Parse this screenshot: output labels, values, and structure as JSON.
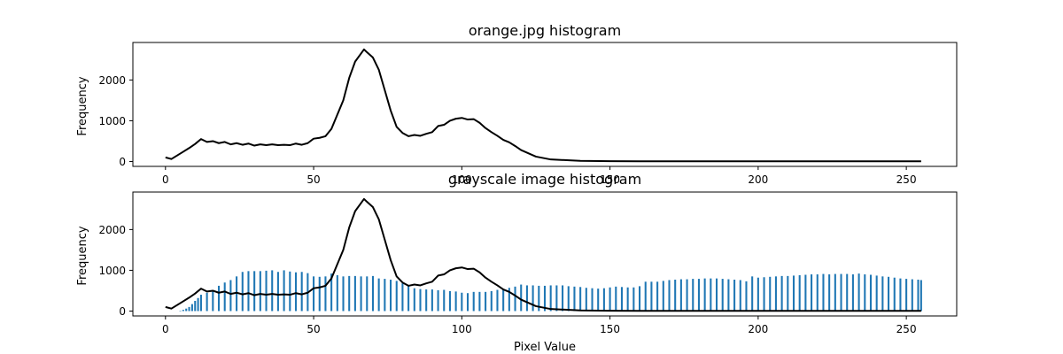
{
  "chart_data": [
    {
      "type": "line",
      "title": "orange.jpg histogram",
      "xlabel": "",
      "ylabel": "Frequency",
      "xlim": [
        -11,
        267
      ],
      "ylim": [
        -120,
        2920
      ],
      "xticks": [
        0,
        50,
        100,
        150,
        200,
        250
      ],
      "yticks": [
        0,
        1000,
        2000
      ],
      "grid": false,
      "series": [
        {
          "color": "#000000",
          "x": [
            0,
            2,
            4,
            6,
            8,
            10,
            12,
            14,
            16,
            18,
            20,
            22,
            24,
            26,
            28,
            30,
            32,
            34,
            36,
            38,
            40,
            42,
            44,
            46,
            48,
            50,
            52,
            54,
            56,
            58,
            60,
            62,
            64,
            66,
            67,
            68,
            70,
            72,
            74,
            76,
            78,
            80,
            82,
            84,
            86,
            88,
            90,
            92,
            94,
            96,
            98,
            100,
            102,
            104,
            106,
            108,
            110,
            112,
            114,
            116,
            118,
            120,
            125,
            130,
            140,
            150,
            160,
            180,
            200,
            220,
            240,
            255
          ],
          "values": [
            100,
            60,
            150,
            240,
            330,
            430,
            550,
            480,
            500,
            450,
            480,
            420,
            450,
            410,
            440,
            390,
            420,
            400,
            420,
            400,
            410,
            400,
            440,
            410,
            450,
            560,
            580,
            620,
            800,
            1150,
            1500,
            2050,
            2450,
            2650,
            2750,
            2680,
            2550,
            2250,
            1750,
            1250,
            850,
            700,
            620,
            650,
            630,
            680,
            720,
            870,
            900,
            1000,
            1050,
            1070,
            1030,
            1040,
            950,
            820,
            720,
            630,
            530,
            470,
            380,
            280,
            120,
            50,
            15,
            8,
            6,
            5,
            5,
            5,
            5,
            5
          ]
        }
      ]
    },
    {
      "type": "bar",
      "title": "grayscale image histogram",
      "xlabel": "Pixel Value",
      "ylabel": "Frequency",
      "xlim": [
        -11,
        267
      ],
      "ylim": [
        -120,
        2920
      ],
      "xticks": [
        0,
        50,
        100,
        150,
        200,
        250
      ],
      "yticks": [
        0,
        1000,
        2000
      ],
      "grid": false,
      "bar_color": "#1f77b4",
      "bar_x": [
        1,
        2,
        3,
        4,
        5,
        6,
        7,
        8,
        9,
        10,
        11,
        12,
        14,
        16,
        18,
        20,
        22,
        24,
        26,
        28,
        30,
        32,
        34,
        36,
        38,
        40,
        42,
        44,
        46,
        48,
        50,
        52,
        54,
        56,
        58,
        60,
        62,
        64,
        66,
        68,
        70,
        72,
        74,
        76,
        78,
        80,
        82,
        84,
        86,
        88,
        90,
        92,
        94,
        96,
        98,
        100,
        102,
        104,
        106,
        108,
        110,
        112,
        114,
        116,
        118,
        120,
        122,
        124,
        126,
        128,
        130,
        132,
        134,
        136,
        138,
        140,
        142,
        144,
        146,
        148,
        150,
        152,
        154,
        156,
        158,
        160,
        162,
        164,
        166,
        168,
        170,
        172,
        174,
        176,
        178,
        180,
        182,
        184,
        186,
        188,
        190,
        192,
        194,
        196,
        198,
        200,
        202,
        204,
        206,
        208,
        210,
        212,
        214,
        216,
        218,
        220,
        222,
        224,
        226,
        228,
        230,
        232,
        234,
        236,
        238,
        240,
        242,
        244,
        246,
        248,
        250,
        252,
        254,
        255
      ],
      "bar_values": [
        0,
        0,
        0,
        0,
        10,
        30,
        60,
        100,
        170,
        250,
        320,
        400,
        450,
        500,
        620,
        700,
        760,
        850,
        960,
        980,
        980,
        980,
        990,
        1000,
        960,
        1000,
        970,
        950,
        960,
        930,
        850,
        840,
        850,
        920,
        880,
        850,
        860,
        860,
        850,
        850,
        860,
        800,
        790,
        770,
        740,
        680,
        620,
        560,
        540,
        530,
        530,
        510,
        520,
        490,
        480,
        450,
        440,
        470,
        470,
        470,
        490,
        520,
        540,
        570,
        600,
        650,
        630,
        630,
        620,
        620,
        630,
        630,
        630,
        610,
        600,
        590,
        570,
        560,
        550,
        560,
        580,
        600,
        590,
        580,
        580,
        610,
        720,
        720,
        720,
        740,
        760,
        770,
        780,
        780,
        790,
        790,
        800,
        800,
        800,
        790,
        780,
        770,
        760,
        730,
        850,
        820,
        830,
        840,
        850,
        860,
        860,
        870,
        880,
        890,
        900,
        900,
        910,
        900,
        910,
        910,
        910,
        900,
        920,
        900,
        890,
        870,
        850,
        840,
        820,
        800,
        790,
        780,
        770,
        760
      ],
      "line_color": "#000000",
      "line_x": [
        0,
        2,
        4,
        6,
        8,
        10,
        12,
        14,
        16,
        18,
        20,
        22,
        24,
        26,
        28,
        30,
        32,
        34,
        36,
        38,
        40,
        42,
        44,
        46,
        48,
        50,
        52,
        54,
        56,
        58,
        60,
        62,
        64,
        66,
        67,
        68,
        70,
        72,
        74,
        76,
        78,
        80,
        82,
        84,
        86,
        88,
        90,
        92,
        94,
        96,
        98,
        100,
        102,
        104,
        106,
        108,
        110,
        112,
        114,
        116,
        118,
        120,
        125,
        130,
        140,
        150,
        160,
        180,
        200,
        220,
        240,
        255
      ],
      "line_values": [
        100,
        60,
        150,
        240,
        330,
        430,
        550,
        480,
        500,
        450,
        480,
        420,
        450,
        410,
        440,
        390,
        420,
        400,
        420,
        400,
        410,
        400,
        440,
        410,
        450,
        560,
        580,
        620,
        800,
        1150,
        1500,
        2050,
        2450,
        2650,
        2750,
        2680,
        2550,
        2250,
        1750,
        1250,
        850,
        700,
        620,
        650,
        630,
        680,
        720,
        870,
        900,
        1000,
        1050,
        1070,
        1030,
        1040,
        950,
        820,
        720,
        630,
        530,
        470,
        380,
        280,
        120,
        50,
        15,
        8,
        6,
        5,
        5,
        5,
        5,
        5
      ]
    }
  ]
}
